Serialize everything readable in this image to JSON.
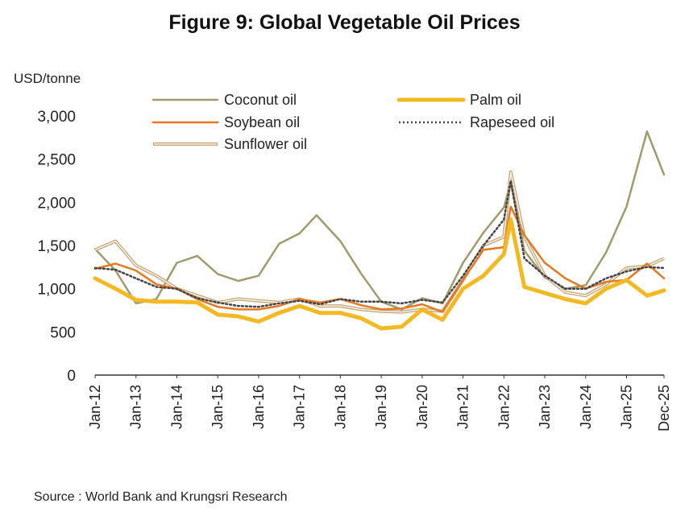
{
  "chart_data": {
    "type": "line",
    "title": "Figure 9: Global Vegetable Oil Prices",
    "ylabel": "USD/tonne",
    "xlabel": "",
    "ylim": [
      0,
      3000
    ],
    "yticks": [
      "0",
      "500",
      "1,000",
      "1,500",
      "2,000",
      "2,500",
      "3,000"
    ],
    "x_start": "Jan-12",
    "x_end": "Dec-25",
    "xticks": [
      "Jan-12",
      "Jan-13",
      "Jan-14",
      "Jan-15",
      "Jan-16",
      "Jan-17",
      "Jan-18",
      "Jan-19",
      "Jan-20",
      "Jan-21",
      "Jan-22",
      "Jan-23",
      "Jan-24",
      "Jan-25",
      "Dec-25"
    ],
    "legend_position": "top",
    "grid": false,
    "series": [
      {
        "name": "Coconut oil",
        "color": "#a39a6c",
        "style": "solid",
        "points": [
          [
            "Jan-12",
            1460
          ],
          [
            "Jul-12",
            1210
          ],
          [
            "Jan-13",
            830
          ],
          [
            "Jul-13",
            880
          ],
          [
            "Jan-14",
            1300
          ],
          [
            "Jul-14",
            1380
          ],
          [
            "Jan-15",
            1170
          ],
          [
            "Jul-15",
            1090
          ],
          [
            "Jan-16",
            1150
          ],
          [
            "Jul-16",
            1520
          ],
          [
            "Jan-17",
            1640
          ],
          [
            "Jun-17",
            1850
          ],
          [
            "Jan-18",
            1550
          ],
          [
            "Jul-18",
            1180
          ],
          [
            "Jan-19",
            850
          ],
          [
            "Jul-19",
            760
          ],
          [
            "Jan-20",
            890
          ],
          [
            "Jul-20",
            830
          ],
          [
            "Jan-21",
            1300
          ],
          [
            "Jul-21",
            1650
          ],
          [
            "Jan-22",
            1940
          ],
          [
            "Mar-22",
            2230
          ],
          [
            "Jul-22",
            1440
          ],
          [
            "Jan-23",
            1130
          ],
          [
            "Jul-23",
            1000
          ],
          [
            "Jan-24",
            1040
          ],
          [
            "Jul-24",
            1420
          ],
          [
            "Jan-25",
            1950
          ],
          [
            "Jul-25",
            2820
          ],
          [
            "Dec-25",
            2320
          ]
        ]
      },
      {
        "name": "Palm oil",
        "color": "#f4b823",
        "style": "thick",
        "points": [
          [
            "Jan-12",
            1120
          ],
          [
            "Jul-12",
            1000
          ],
          [
            "Jan-13",
            870
          ],
          [
            "Jul-13",
            850
          ],
          [
            "Jan-14",
            850
          ],
          [
            "Jul-14",
            840
          ],
          [
            "Jan-15",
            700
          ],
          [
            "Jul-15",
            680
          ],
          [
            "Jan-16",
            620
          ],
          [
            "Jul-16",
            720
          ],
          [
            "Jan-17",
            800
          ],
          [
            "Jul-17",
            720
          ],
          [
            "Jan-18",
            720
          ],
          [
            "Jul-18",
            660
          ],
          [
            "Jan-19",
            540
          ],
          [
            "Jul-19",
            560
          ],
          [
            "Jan-20",
            760
          ],
          [
            "Jul-20",
            640
          ],
          [
            "Jan-21",
            1000
          ],
          [
            "Jul-21",
            1150
          ],
          [
            "Jan-22",
            1400
          ],
          [
            "Mar-22",
            1800
          ],
          [
            "Jul-22",
            1020
          ],
          [
            "Jan-23",
            950
          ],
          [
            "Jul-23",
            880
          ],
          [
            "Jan-24",
            830
          ],
          [
            "Jul-24",
            1000
          ],
          [
            "Jan-25",
            1100
          ],
          [
            "Jul-25",
            920
          ],
          [
            "Dec-25",
            980
          ]
        ]
      },
      {
        "name": "Soybean oil",
        "color": "#e87722",
        "style": "solid",
        "points": [
          [
            "Jan-12",
            1230
          ],
          [
            "Jul-12",
            1290
          ],
          [
            "Jan-13",
            1210
          ],
          [
            "Jul-13",
            1050
          ],
          [
            "Jan-14",
            1000
          ],
          [
            "Jul-14",
            880
          ],
          [
            "Jan-15",
            790
          ],
          [
            "Jul-15",
            760
          ],
          [
            "Jan-16",
            760
          ],
          [
            "Jul-16",
            800
          ],
          [
            "Jan-17",
            880
          ],
          [
            "Jul-17",
            840
          ],
          [
            "Jan-18",
            880
          ],
          [
            "Jul-18",
            810
          ],
          [
            "Jan-19",
            760
          ],
          [
            "Jul-19",
            770
          ],
          [
            "Jan-20",
            820
          ],
          [
            "Jul-20",
            730
          ],
          [
            "Jan-21",
            1100
          ],
          [
            "Jul-21",
            1450
          ],
          [
            "Jan-22",
            1480
          ],
          [
            "Mar-22",
            1950
          ],
          [
            "Jul-22",
            1620
          ],
          [
            "Jan-23",
            1300
          ],
          [
            "Jul-23",
            1120
          ],
          [
            "Jan-24",
            1000
          ],
          [
            "Jul-24",
            1080
          ],
          [
            "Jan-25",
            1100
          ],
          [
            "Jul-25",
            1290
          ],
          [
            "Dec-25",
            1120
          ]
        ]
      },
      {
        "name": "Rapeseed oil",
        "color": "#444444",
        "style": "dotted",
        "points": [
          [
            "Jan-12",
            1240
          ],
          [
            "Jul-12",
            1220
          ],
          [
            "Jan-13",
            1120
          ],
          [
            "Jul-13",
            1020
          ],
          [
            "Jan-14",
            1000
          ],
          [
            "Jul-14",
            890
          ],
          [
            "Jan-15",
            840
          ],
          [
            "Jul-15",
            800
          ],
          [
            "Jan-16",
            790
          ],
          [
            "Jul-16",
            830
          ],
          [
            "Jan-17",
            860
          ],
          [
            "Jul-17",
            820
          ],
          [
            "Jan-18",
            880
          ],
          [
            "Jul-18",
            850
          ],
          [
            "Jan-19",
            850
          ],
          [
            "Jul-19",
            830
          ],
          [
            "Jan-20",
            870
          ],
          [
            "Jul-20",
            840
          ],
          [
            "Jan-21",
            1150
          ],
          [
            "Jul-21",
            1500
          ],
          [
            "Jan-22",
            1800
          ],
          [
            "Mar-22",
            2250
          ],
          [
            "Jul-22",
            1350
          ],
          [
            "Jan-23",
            1150
          ],
          [
            "Jul-23",
            1000
          ],
          [
            "Jan-24",
            1000
          ],
          [
            "Jul-24",
            1120
          ],
          [
            "Jan-25",
            1200
          ],
          [
            "Jul-25",
            1250
          ],
          [
            "Dec-25",
            1240
          ]
        ]
      },
      {
        "name": "Sunflower oil",
        "color": "#c6a472",
        "style": "double",
        "points": [
          [
            "Jan-12",
            1450
          ],
          [
            "Jul-12",
            1550
          ],
          [
            "Jan-13",
            1270
          ],
          [
            "Jul-13",
            1150
          ],
          [
            "Jan-14",
            1000
          ],
          [
            "Jul-14",
            920
          ],
          [
            "Jan-15",
            840
          ],
          [
            "Jul-15",
            880
          ],
          [
            "Jan-16",
            860
          ],
          [
            "Jul-16",
            840
          ],
          [
            "Jan-17",
            880
          ],
          [
            "Jul-17",
            800
          ],
          [
            "Jan-18",
            800
          ],
          [
            "Jul-18",
            760
          ],
          [
            "Jan-19",
            740
          ],
          [
            "Jul-19",
            730
          ],
          [
            "Jan-20",
            760
          ],
          [
            "Jul-20",
            740
          ],
          [
            "Jan-21",
            1100
          ],
          [
            "Jul-21",
            1500
          ],
          [
            "Jan-22",
            1600
          ],
          [
            "Mar-22",
            2350
          ],
          [
            "Jul-22",
            1600
          ],
          [
            "Jan-23",
            1150
          ],
          [
            "Jul-23",
            960
          ],
          [
            "Jan-24",
            920
          ],
          [
            "Jul-24",
            1050
          ],
          [
            "Jan-25",
            1240
          ],
          [
            "Jul-25",
            1260
          ],
          [
            "Dec-25",
            1350
          ]
        ]
      }
    ]
  },
  "source_note": "Source : World Bank and Krungsri Research"
}
